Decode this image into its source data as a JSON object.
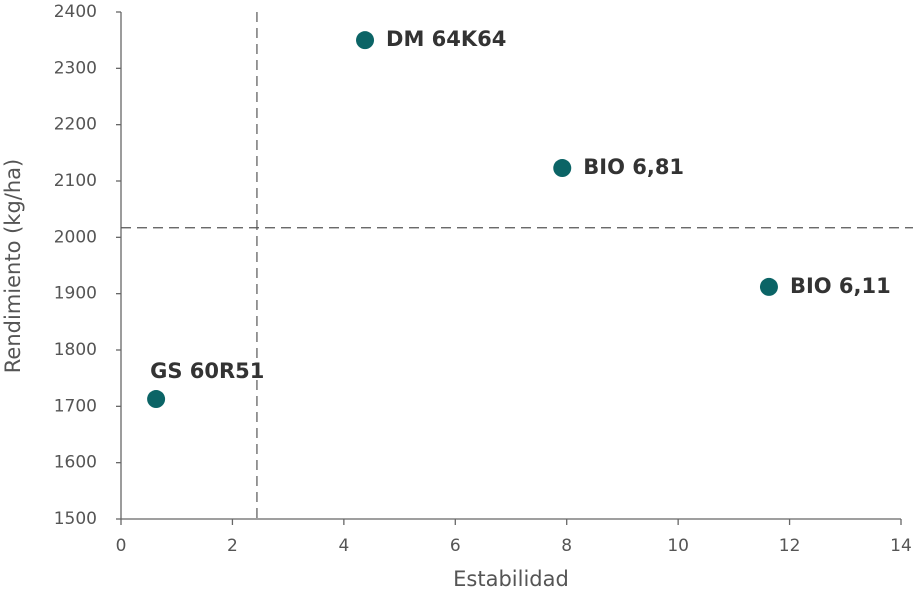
{
  "chart_data": {
    "type": "scatter",
    "x_label": "Estabilidad",
    "y_label": "Rendimiento (kg/ha)",
    "points": [
      {
        "label": "DM 64K64",
        "x": 4.38,
        "y": 2350
      },
      {
        "label": "BIO 6,81",
        "x": 7.92,
        "y": 2123
      },
      {
        "label": "BIO 6,11",
        "x": 11.63,
        "y": 1912
      },
      {
        "label": "GS 60R51",
        "x": 0.63,
        "y": 1713
      }
    ],
    "color": "#0b6466",
    "xlim": [
      0,
      14
    ],
    "xticks": [
      0,
      2,
      4,
      6,
      8,
      10,
      12,
      14
    ],
    "ylim": [
      1500,
      2400
    ],
    "yticks": [
      1500,
      1600,
      1700,
      1800,
      1900,
      2000,
      2100,
      2200,
      2300,
      2400
    ],
    "reference_x": 2.44,
    "reference_y": 2017
  }
}
